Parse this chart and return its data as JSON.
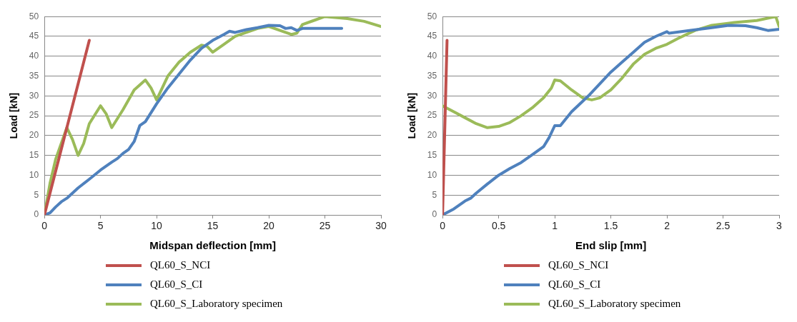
{
  "chart_data": [
    {
      "type": "line",
      "xlabel": "Midspan deflection [mm]",
      "ylabel": "Load [kN]",
      "xlim": [
        0,
        30
      ],
      "xticks": [
        0,
        5,
        10,
        15,
        20,
        25,
        30
      ],
      "ylim": [
        0,
        50
      ],
      "yticks": [
        0,
        5,
        10,
        15,
        20,
        25,
        30,
        35,
        40,
        45,
        50
      ],
      "grid": "y",
      "legend": "bottom",
      "marker": "none",
      "line_style": "solid",
      "series": [
        {
          "name": "QL60_S_NCI",
          "color": "#c0504d",
          "x": [
            0,
            4
          ],
          "values": [
            0,
            44
          ]
        },
        {
          "name": "QL60_S_CI",
          "color": "#4f81bd",
          "x": [
            0,
            0.5,
            1,
            1.5,
            2,
            3,
            4,
            5,
            6,
            6.5,
            7,
            7.5,
            8,
            8.5,
            9,
            10,
            11,
            12,
            13,
            14,
            15,
            16,
            16.5,
            17,
            18,
            19,
            20,
            21,
            21.5,
            22,
            22.5,
            23,
            26.5
          ],
          "values": [
            0,
            0.5,
            2,
            3.3,
            4.2,
            6.8,
            9,
            11.3,
            13.3,
            14.2,
            15.5,
            16.5,
            18.5,
            22.5,
            23.5,
            28,
            32,
            35.5,
            39,
            42,
            44,
            45.5,
            46.3,
            46,
            46.7,
            47.2,
            47.8,
            47.7,
            47,
            47.2,
            46.5,
            47,
            47
          ]
        },
        {
          "name": "QL60_S_Laboratory specimen",
          "color": "#9bbb59",
          "x": [
            0,
            0.5,
            1,
            2,
            2.5,
            3,
            3.5,
            4,
            5,
            5.5,
            6,
            7,
            8,
            9,
            9.5,
            10,
            11,
            12,
            13,
            14,
            14.5,
            15,
            16,
            17,
            18,
            19,
            20,
            21,
            22,
            22.5,
            23,
            24,
            25,
            27,
            28.5,
            30
          ],
          "values": [
            0,
            8,
            14,
            22,
            19,
            15,
            18,
            23,
            27.5,
            25.5,
            22,
            26.5,
            31.5,
            34,
            32,
            29,
            35,
            38.5,
            41,
            42.8,
            42.5,
            41,
            43,
            45,
            46,
            47,
            47.5,
            46.5,
            45.5,
            45.8,
            48,
            49,
            50,
            49.5,
            48.8,
            47.5
          ]
        }
      ]
    },
    {
      "type": "line",
      "xlabel": "End slip [mm]",
      "ylabel": "Load [kN]",
      "xlim": [
        0,
        3
      ],
      "xticks": [
        0,
        0.5,
        1,
        1.5,
        2,
        2.5,
        3
      ],
      "ylim": [
        0,
        50
      ],
      "yticks": [
        0,
        5,
        10,
        15,
        20,
        25,
        30,
        35,
        40,
        45,
        50
      ],
      "grid": "y",
      "legend": "bottom",
      "marker": "none",
      "line_style": "solid",
      "series": [
        {
          "name": "QL60_S_NCI",
          "color": "#c0504d",
          "x": [
            0,
            0.04
          ],
          "values": [
            0,
            44
          ]
        },
        {
          "name": "QL60_S_CI",
          "color": "#4f81bd",
          "x": [
            0,
            0.1,
            0.2,
            0.25,
            0.3,
            0.4,
            0.5,
            0.6,
            0.7,
            0.8,
            0.9,
            0.95,
            1,
            1.05,
            1.15,
            1.3,
            1.4,
            1.5,
            1.6,
            1.7,
            1.8,
            1.9,
            2,
            2.02,
            2.2,
            2.4,
            2.55,
            2.7,
            2.8,
            2.9,
            3
          ],
          "values": [
            0,
            1.5,
            3.5,
            4.2,
            5.5,
            7.8,
            10,
            11.7,
            13.2,
            15.2,
            17.2,
            19.5,
            22.5,
            22.5,
            26,
            30,
            33,
            36,
            38.5,
            41,
            43.5,
            45,
            46.2,
            45.8,
            46.5,
            47.2,
            47.8,
            47.7,
            47.2,
            46.5,
            46.8
          ]
        },
        {
          "name": "QL60_S_Laboratory specimen",
          "color": "#9bbb59",
          "x": [
            0,
            0.1,
            0.2,
            0.3,
            0.4,
            0.5,
            0.6,
            0.7,
            0.8,
            0.9,
            0.97,
            1,
            1.05,
            1.15,
            1.25,
            1.33,
            1.4,
            1.5,
            1.6,
            1.7,
            1.8,
            1.9,
            2,
            2.1,
            2.25,
            2.4,
            2.6,
            2.8,
            2.92,
            2.97,
            3
          ],
          "values": [
            27.5,
            26,
            24.5,
            23,
            22,
            22.3,
            23.3,
            25,
            27,
            29.5,
            32,
            34,
            33.8,
            31.5,
            29.5,
            29,
            29.5,
            31.5,
            34.5,
            38,
            40.5,
            42,
            43,
            44.5,
            46.5,
            47.8,
            48.5,
            49,
            49.7,
            50,
            47.5
          ]
        }
      ]
    }
  ]
}
